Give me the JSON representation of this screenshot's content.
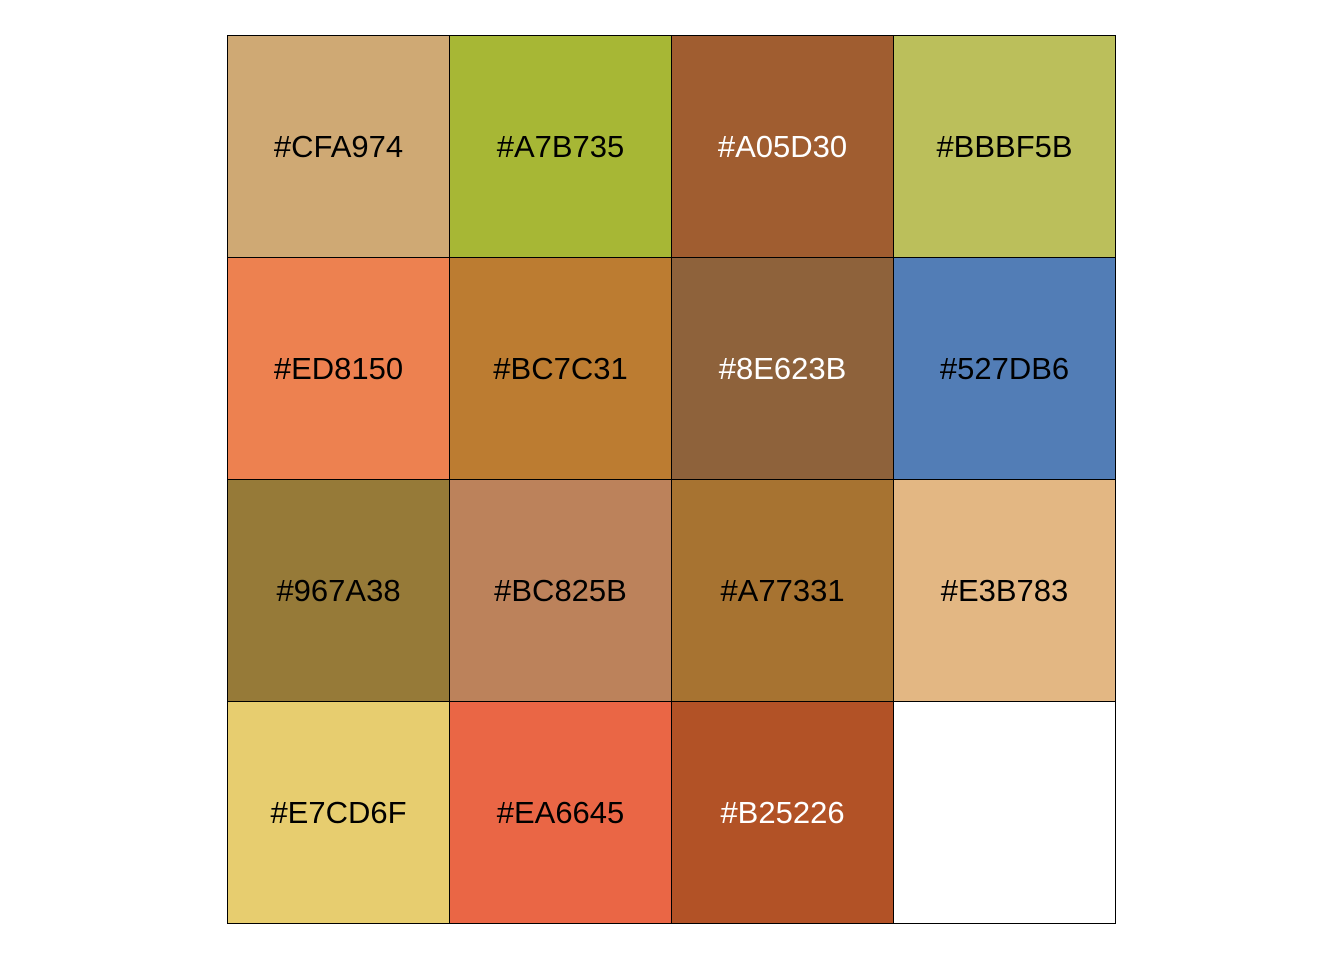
{
  "swatches": [
    {
      "label": "#CFA974",
      "color": "#CFA974",
      "text_color": "#000000"
    },
    {
      "label": "#A7B735",
      "color": "#A7B735",
      "text_color": "#000000"
    },
    {
      "label": "#A05D30",
      "color": "#A05D30",
      "text_color": "#FFFFFF"
    },
    {
      "label": "#BBBF5B",
      "color": "#BBBF5B",
      "text_color": "#000000"
    },
    {
      "label": "#ED8150",
      "color": "#ED8150",
      "text_color": "#000000"
    },
    {
      "label": "#BC7C31",
      "color": "#BC7C31",
      "text_color": "#000000"
    },
    {
      "label": "#8E623B",
      "color": "#8E623B",
      "text_color": "#FFFFFF"
    },
    {
      "label": "#527DB6",
      "color": "#527DB6",
      "text_color": "#000000"
    },
    {
      "label": "#967A38",
      "color": "#967A38",
      "text_color": "#000000"
    },
    {
      "label": "#BC825B",
      "color": "#BC825B",
      "text_color": "#000000"
    },
    {
      "label": "#A77331",
      "color": "#A77331",
      "text_color": "#000000"
    },
    {
      "label": "#E3B783",
      "color": "#E3B783",
      "text_color": "#000000"
    },
    {
      "label": "#E7CD6F",
      "color": "#E7CD6F",
      "text_color": "#000000"
    },
    {
      "label": "#EA6645",
      "color": "#EA6645",
      "text_color": "#000000"
    },
    {
      "label": "#B25226",
      "color": "#B25226",
      "text_color": "#FFFFFF"
    },
    {
      "label": "",
      "color": "#FFFFFF",
      "text_color": "#000000"
    }
  ]
}
